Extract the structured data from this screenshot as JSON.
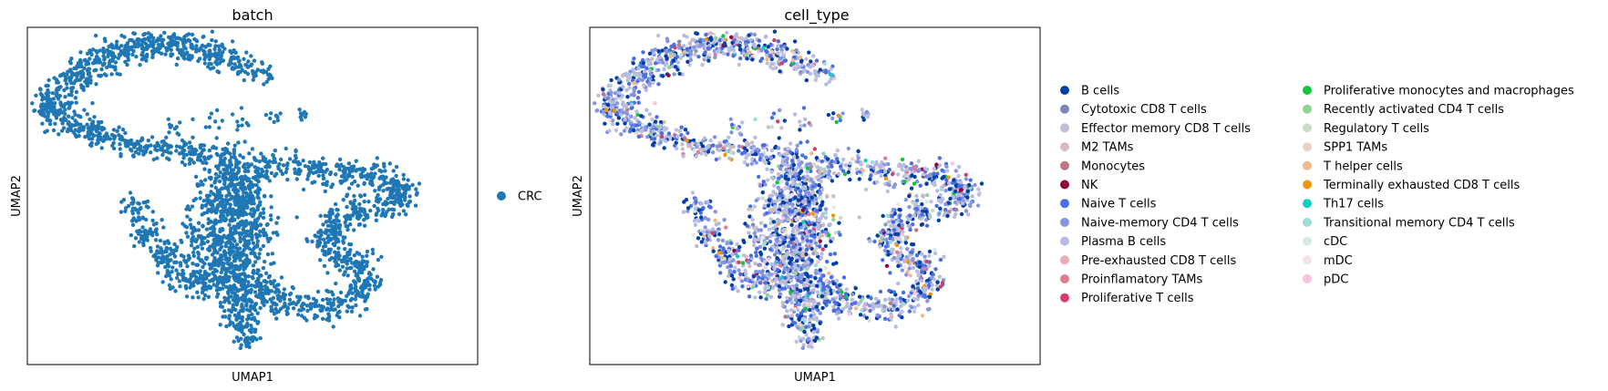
{
  "chart_data": [
    {
      "type": "scatter",
      "title": "batch",
      "xlabel": "UMAP1",
      "ylabel": "UMAP2",
      "grid": false,
      "legend_placement": "right",
      "legend": [
        {
          "name": "CRC",
          "color": "#1f77b4"
        }
      ]
    },
    {
      "type": "scatter",
      "title": "cell_type",
      "xlabel": "UMAP1",
      "ylabel": "UMAP2",
      "grid": false,
      "legend_placement": "right",
      "legend": [
        {
          "name": "B cells",
          "color": "#023fa5"
        },
        {
          "name": "Cytotoxic CD8 T cells",
          "color": "#7d87b9"
        },
        {
          "name": "Effector memory CD8 T cells",
          "color": "#bec1d4"
        },
        {
          "name": "M2 TAMs",
          "color": "#d6bcc0"
        },
        {
          "name": "Monocytes",
          "color": "#bb7784"
        },
        {
          "name": "NK",
          "color": "#8e063b"
        },
        {
          "name": "Naive T cells",
          "color": "#4a6fe3"
        },
        {
          "name": "Naive-memory CD4 T cells",
          "color": "#8595e1"
        },
        {
          "name": "Plasma B cells",
          "color": "#b5bbe3"
        },
        {
          "name": "Pre-exhausted CD8 T cells",
          "color": "#e6afb9"
        },
        {
          "name": "Proinflamatory TAMs",
          "color": "#e07b91"
        },
        {
          "name": "Proliferative T cells",
          "color": "#d33f6a"
        },
        {
          "name": "Proliferative monocytes and macrophages",
          "color": "#11c638"
        },
        {
          "name": "Recently activated CD4 T cells",
          "color": "#8dd593"
        },
        {
          "name": "Regulatory T cells",
          "color": "#c6dec7"
        },
        {
          "name": "SPP1 TAMs",
          "color": "#ead3c6"
        },
        {
          "name": "T helper cells",
          "color": "#f0b98d"
        },
        {
          "name": "Terminally exhausted CD8 T cells",
          "color": "#ef9708"
        },
        {
          "name": "Th17 cells",
          "color": "#0fcfc0"
        },
        {
          "name": "Transitional memory CD4 T cells",
          "color": "#9cded6"
        },
        {
          "name": "cDC",
          "color": "#d5eae7"
        },
        {
          "name": "mDC",
          "color": "#f3e1eb"
        },
        {
          "name": "pDC",
          "color": "#f6c4e1"
        }
      ],
      "dominant_colors": [
        "#023fa5",
        "#8595e1",
        "#b5bbe3",
        "#bec1d4",
        "#4a6fe3"
      ]
    }
  ]
}
